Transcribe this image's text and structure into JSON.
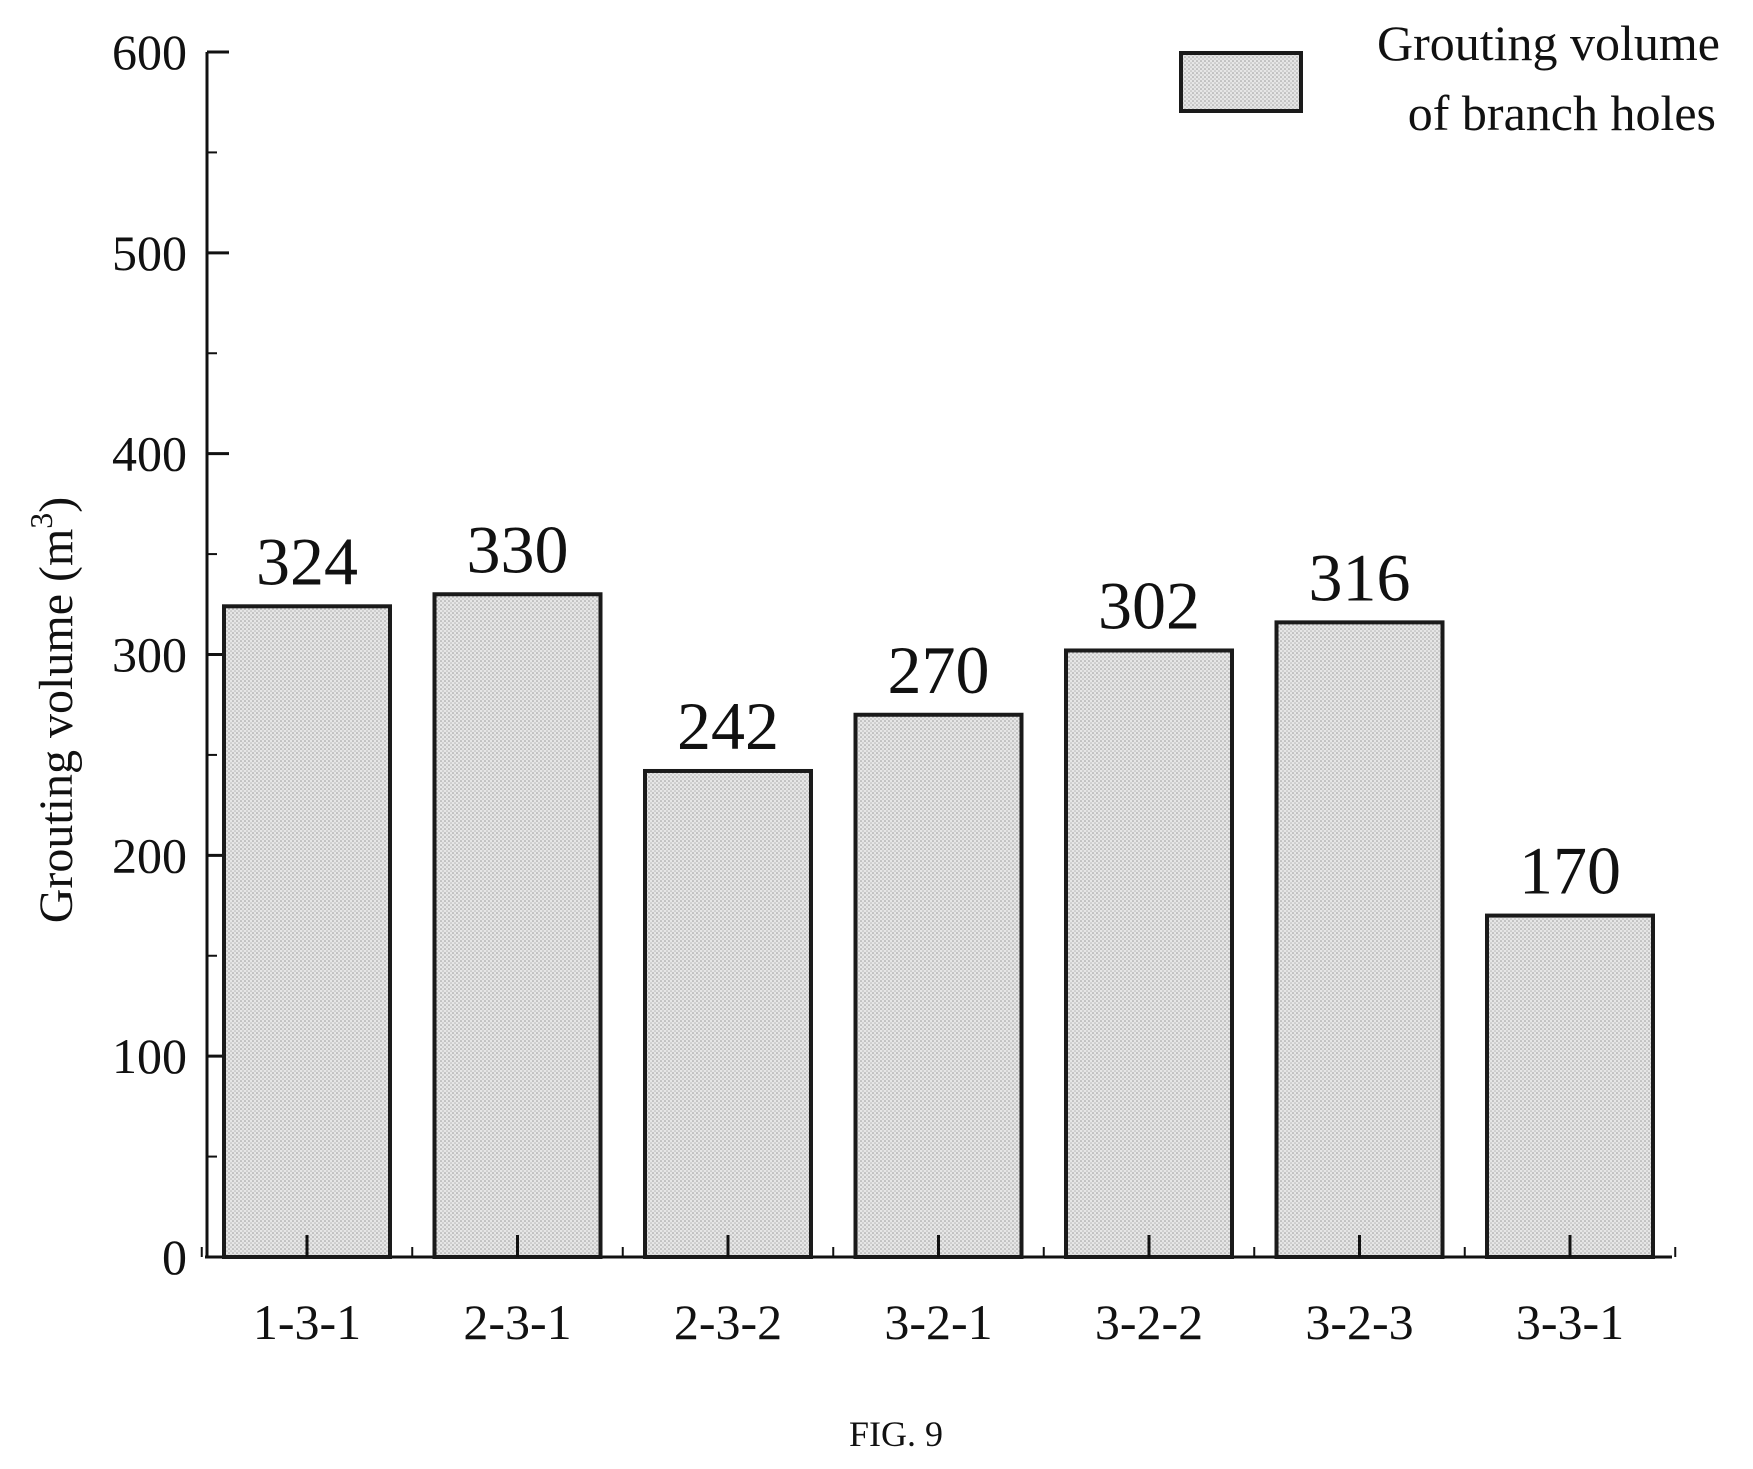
{
  "chart_data": {
    "type": "bar",
    "categories": [
      "1-3-1",
      "2-3-1",
      "2-3-2",
      "3-2-1",
      "3-2-2",
      "3-2-3",
      "3-3-1"
    ],
    "values": [
      324,
      330,
      242,
      270,
      302,
      316,
      170
    ],
    "data_labels": [
      "324",
      "330",
      "242",
      "270",
      "302",
      "316",
      "170"
    ],
    "ylabel": "Grouting volume (m",
    "ylabel_superscript": "3",
    "ylabel_close": ")",
    "ylim": [
      0,
      600
    ],
    "yticks": [
      0,
      100,
      200,
      300,
      400,
      500,
      600
    ],
    "ytick_labels": [
      "0",
      "100",
      "200",
      "300",
      "400",
      "500",
      "600"
    ],
    "grid": false,
    "legend": {
      "placement": "top-right",
      "entries": [
        {
          "line1": "Grouting volume",
          "line2": "of branch holes"
        }
      ]
    },
    "bar_fill": "#e2e2e2",
    "bar_stroke": "#1a1a1a"
  },
  "caption": "FIG. 9"
}
